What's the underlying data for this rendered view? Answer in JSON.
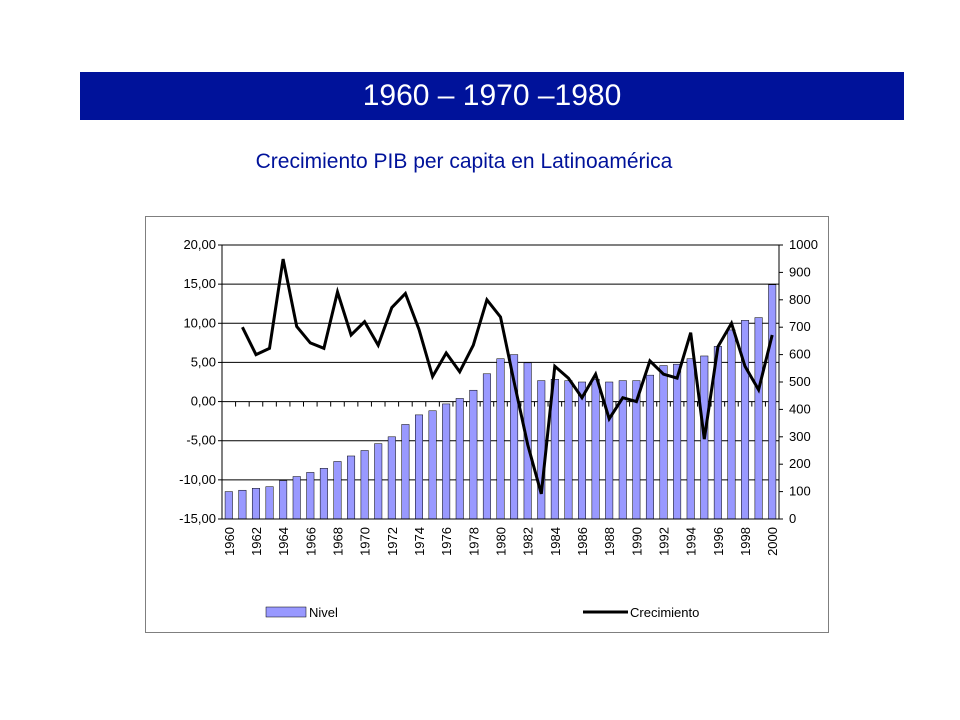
{
  "header": {
    "title": "1960 – 1970 –1980"
  },
  "subtitle": "Crecimiento PIB per capita en Latinoamérica",
  "colors": {
    "banner": "#00129a",
    "bar": "#9999ff",
    "line": "#000000"
  },
  "chart_data": {
    "type": "bar+line",
    "title": "",
    "xlabel": "",
    "ylabel": "",
    "grid": true,
    "legend": "bottom",
    "years": [
      1960,
      1961,
      1962,
      1963,
      1964,
      1965,
      1966,
      1967,
      1968,
      1969,
      1970,
      1971,
      1972,
      1973,
      1974,
      1975,
      1976,
      1977,
      1978,
      1979,
      1980,
      1981,
      1982,
      1983,
      1984,
      1985,
      1986,
      1987,
      1988,
      1989,
      1990,
      1991,
      1992,
      1993,
      1994,
      1995,
      1996,
      1997,
      1998,
      1999,
      2000
    ],
    "x_tick_labels": [
      "1960",
      "1962",
      "1964",
      "1966",
      "1968",
      "1970",
      "1972",
      "1974",
      "1976",
      "1978",
      "1980",
      "1982",
      "1984",
      "1986",
      "1988",
      "1990",
      "1992",
      "1994",
      "1996",
      "1998",
      "2000"
    ],
    "left_axis": {
      "ylim": [
        -15,
        20
      ],
      "ticks": [
        "20,00",
        "15,00",
        "10,00",
        "5,00",
        "0,00",
        "-5,00",
        "-10,00",
        "-15,00"
      ]
    },
    "right_axis": {
      "ylim": [
        0,
        1000
      ],
      "ticks": [
        "1000",
        "900",
        "800",
        "700",
        "600",
        "500",
        "400",
        "300",
        "200",
        "100",
        "0"
      ]
    },
    "series": [
      {
        "name": "Nivel",
        "type": "bar",
        "axis": "right",
        "values": [
          100,
          105,
          112,
          118,
          140,
          155,
          170,
          185,
          210,
          230,
          250,
          275,
          300,
          345,
          380,
          395,
          420,
          440,
          470,
          530,
          585,
          600,
          570,
          505,
          510,
          505,
          500,
          510,
          500,
          505,
          505,
          525,
          560,
          565,
          585,
          595,
          630,
          690,
          725,
          735,
          855
        ]
      },
      {
        "name": "Crecimiento",
        "type": "line",
        "axis": "left",
        "values": [
          null,
          9.5,
          6.0,
          6.8,
          18.2,
          9.6,
          7.5,
          6.8,
          14.0,
          8.5,
          10.2,
          7.2,
          12.0,
          13.8,
          9.2,
          3.2,
          6.2,
          3.8,
          7.2,
          13.0,
          10.8,
          2.5,
          -5.5,
          -11.8,
          4.5,
          3.0,
          0.5,
          3.5,
          -2.2,
          0.5,
          0.0,
          5.2,
          3.5,
          3.0,
          8.8,
          -4.8,
          7.0,
          10.0,
          4.5,
          1.5,
          8.5
        ]
      }
    ]
  }
}
